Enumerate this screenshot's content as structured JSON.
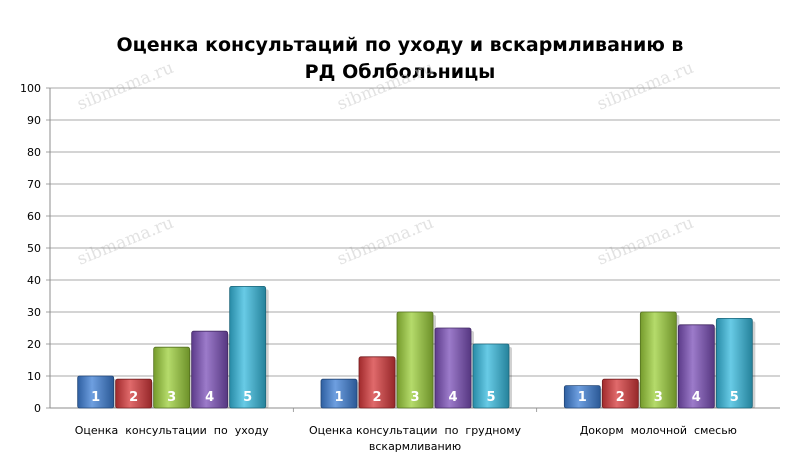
{
  "chart_data": {
    "type": "bar",
    "title_lines": [
      "Оценка консультаций по уходу и вскармливанию в",
      "РД Облбольницы"
    ],
    "categories": [
      [
        "Оценка  консультации  по  уходу"
      ],
      [
        "Оценка консультации  по  грудному",
        "вскармливанию"
      ],
      [
        "Докорм  молочной  смесью"
      ]
    ],
    "series": [
      {
        "name": "1",
        "color": "#3d7fd6",
        "values": [
          10,
          9,
          7
        ]
      },
      {
        "name": "2",
        "color": "#d6383a",
        "values": [
          9,
          16,
          9
        ]
      },
      {
        "name": "3",
        "color": "#9ccf3a",
        "values": [
          19,
          30,
          30
        ]
      },
      {
        "name": "4",
        "color": "#7b4fb8",
        "values": [
          24,
          25,
          26
        ]
      },
      {
        "name": "5",
        "color": "#35b9de",
        "values": [
          38,
          20,
          28
        ]
      }
    ],
    "ylim": [
      0,
      100
    ],
    "yticks": [
      0,
      10,
      20,
      30,
      40,
      50,
      60,
      70,
      80,
      90,
      100
    ],
    "grid": true,
    "legend": "none"
  },
  "watermark": "sibmama.ru"
}
